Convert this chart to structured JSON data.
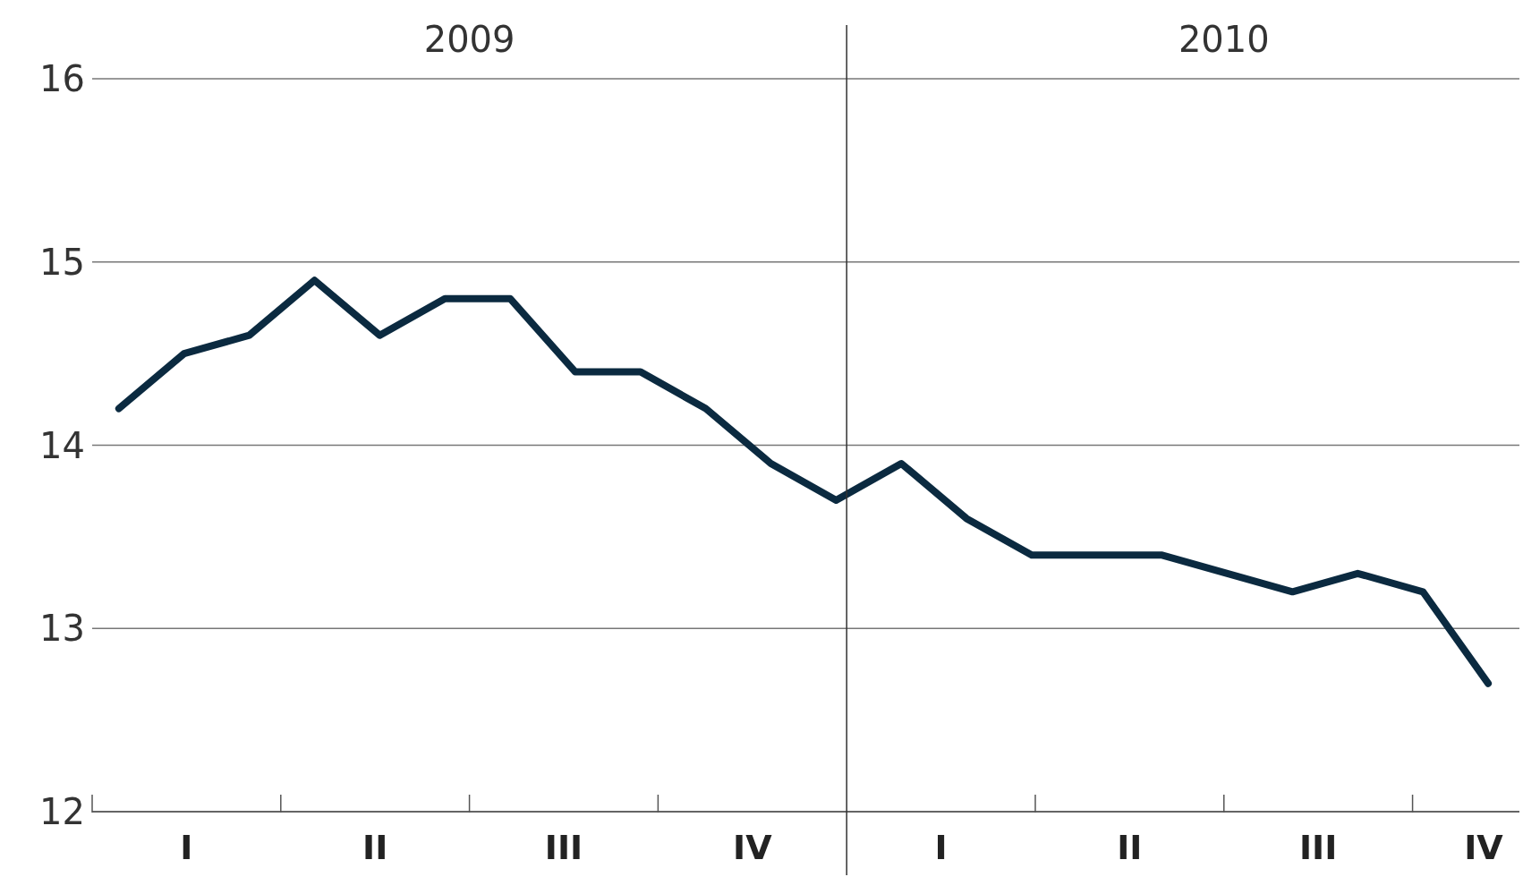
{
  "chart_data": {
    "type": "line",
    "categories": [
      null,
      null,
      null,
      null,
      null,
      null,
      null,
      null,
      null,
      null,
      null,
      null,
      null,
      null,
      null,
      null,
      null,
      null,
      null,
      null,
      null,
      null
    ],
    "series": [
      {
        "color": "#0b2a40",
        "values": [
          14.2,
          14.5,
          14.6,
          14.9,
          14.6,
          14.8,
          14.8,
          14.4,
          14.4,
          14.2,
          13.9,
          13.7,
          13.9,
          13.6,
          13.4,
          13.4,
          13.4,
          13.3,
          13.2,
          13.3,
          13.2,
          12.7
        ]
      }
    ],
    "annotations": [
      "2009",
      "2010",
      "I",
      "II",
      "III",
      "IV",
      "I",
      "II",
      "III",
      "IV"
    ],
    "ylim": [
      12,
      16
    ],
    "yticks": [
      12,
      13,
      14,
      15,
      16
    ],
    "grid": "y",
    "marker": "none",
    "line_style": "solid"
  }
}
